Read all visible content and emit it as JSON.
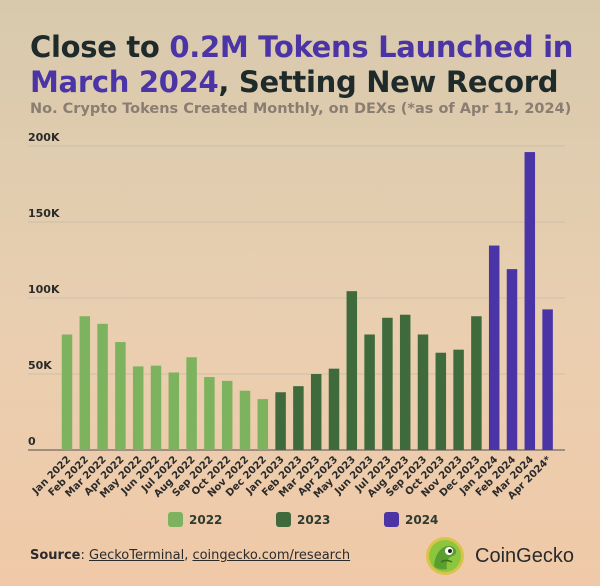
{
  "title": {
    "part1_highlight": "Close to ",
    "part2_highlight": "0.2M Tokens Launched in March 2024",
    "part3": ", Setting New Record"
  },
  "subtitle": "No. Crypto Tokens Created Monthly, on DEXs (*as of Apr 11, 2024)",
  "colors": {
    "2022": "#7db35f",
    "2023": "#3f6a3c",
    "2024": "#4a34a6",
    "accent": "#4a34a6"
  },
  "legend": [
    {
      "label": "2022",
      "color": "#7db35f"
    },
    {
      "label": "2023",
      "color": "#3f6a3c"
    },
    {
      "label": "2024",
      "color": "#4a34a6"
    }
  ],
  "source": {
    "prefix": "Source",
    "link1": "GeckoTerminal",
    "sep": ", ",
    "link2": "coingecko.com/research"
  },
  "brand": {
    "name": "CoinGecko",
    "logo_icon": "gecko-logo-icon"
  },
  "chart_data": {
    "type": "bar",
    "title": "Close to 0.2M Tokens Launched in March 2024, Setting New Record",
    "subtitle": "No. Crypto Tokens Created Monthly, on DEXs (*as of Apr 11, 2024)",
    "xlabel": "",
    "ylabel": "",
    "ylim": [
      0,
      200000
    ],
    "yticks": [
      0,
      50000,
      100000,
      150000,
      200000
    ],
    "ytick_labels": [
      "0",
      "50K",
      "100K",
      "150K",
      "200K"
    ],
    "grid": true,
    "legend_position": "bottom",
    "categories": [
      "Jan 2022",
      "Feb 2022",
      "Mar 2022",
      "Apr 2022",
      "May 2022",
      "Jun 2022",
      "Jul 2022",
      "Aug 2022",
      "Sep 2022",
      "Oct 2022",
      "Nov 2022",
      "Dec 2022",
      "Jan 2023",
      "Feb 2023",
      "Mar 2023",
      "Apr 2023",
      "May 2023",
      "Jun 2023",
      "Jul 2023",
      "Aug 2023",
      "Sep 2023",
      "Oct 2023",
      "Nov 2023",
      "Dec 2023",
      "Jan 2024",
      "Feb 2024",
      "Mar 2024",
      "Apr 2024*"
    ],
    "values": [
      76000,
      88000,
      83000,
      71000,
      55000,
      55500,
      51000,
      61000,
      48000,
      45500,
      39000,
      33500,
      38000,
      42000,
      50000,
      53500,
      104500,
      76000,
      87000,
      89000,
      76000,
      64000,
      66000,
      88000,
      134500,
      119000,
      196000,
      92500
    ],
    "series_by_year": [
      "2022",
      "2022",
      "2022",
      "2022",
      "2022",
      "2022",
      "2022",
      "2022",
      "2022",
      "2022",
      "2022",
      "2022",
      "2023",
      "2023",
      "2023",
      "2023",
      "2023",
      "2023",
      "2023",
      "2023",
      "2023",
      "2023",
      "2023",
      "2023",
      "2024",
      "2024",
      "2024",
      "2024"
    ]
  }
}
